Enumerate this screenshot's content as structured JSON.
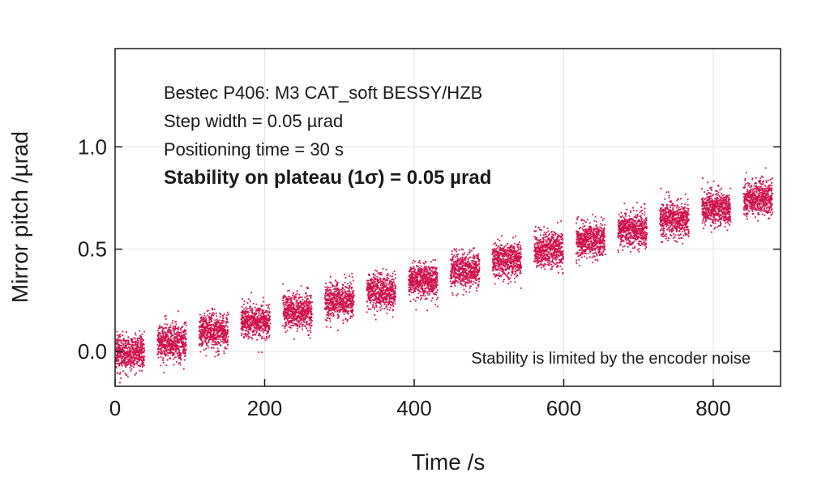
{
  "chart_data": {
    "type": "scatter",
    "xlabel": "Time /s",
    "ylabel": "Mirror pitch /µrad",
    "xlim": [
      0,
      890
    ],
    "ylim": [
      -0.17,
      1.48
    ],
    "x_ticks": [
      {
        "value": 0,
        "label": "0"
      },
      {
        "value": 200,
        "label": "200"
      },
      {
        "value": 400,
        "label": "400"
      },
      {
        "value": 600,
        "label": "600"
      },
      {
        "value": 800,
        "label": "800"
      }
    ],
    "y_ticks": [
      {
        "value": 0.0,
        "label": "0.0"
      },
      {
        "value": 0.5,
        "label": "0.5"
      },
      {
        "value": 1.0,
        "label": "1.0"
      }
    ],
    "grid": true,
    "marker_color": "#d0104c",
    "annotations": [
      "Bestec P406: M3 CAT_soft BESSY/HZB",
      "Step width = 0.05 µrad",
      "Positioning time = 30 s",
      "Stability on plateau (1σ) = 0.05 µrad"
    ],
    "note": "Stability is limited by the encoder noise",
    "plateaus": [
      {
        "t_start": 0,
        "t_end": 38,
        "mean": 0.0,
        "sigma": 0.05
      },
      {
        "t_start": 56,
        "t_end": 94,
        "mean": 0.05,
        "sigma": 0.05
      },
      {
        "t_start": 112,
        "t_end": 150,
        "mean": 0.1,
        "sigma": 0.05
      },
      {
        "t_start": 168,
        "t_end": 206,
        "mean": 0.15,
        "sigma": 0.05
      },
      {
        "t_start": 224,
        "t_end": 262,
        "mean": 0.2,
        "sigma": 0.05
      },
      {
        "t_start": 280,
        "t_end": 318,
        "mean": 0.25,
        "sigma": 0.05
      },
      {
        "t_start": 336,
        "t_end": 374,
        "mean": 0.3,
        "sigma": 0.05
      },
      {
        "t_start": 392,
        "t_end": 430,
        "mean": 0.35,
        "sigma": 0.05
      },
      {
        "t_start": 448,
        "t_end": 486,
        "mean": 0.4,
        "sigma": 0.05
      },
      {
        "t_start": 504,
        "t_end": 542,
        "mean": 0.45,
        "sigma": 0.05
      },
      {
        "t_start": 560,
        "t_end": 598,
        "mean": 0.5,
        "sigma": 0.05
      },
      {
        "t_start": 616,
        "t_end": 654,
        "mean": 0.55,
        "sigma": 0.05
      },
      {
        "t_start": 672,
        "t_end": 710,
        "mean": 0.6,
        "sigma": 0.05
      },
      {
        "t_start": 728,
        "t_end": 766,
        "mean": 0.65,
        "sigma": 0.05
      },
      {
        "t_start": 784,
        "t_end": 822,
        "mean": 0.7,
        "sigma": 0.05
      },
      {
        "t_start": 840,
        "t_end": 878,
        "mean": 0.75,
        "sigma": 0.05
      }
    ]
  }
}
